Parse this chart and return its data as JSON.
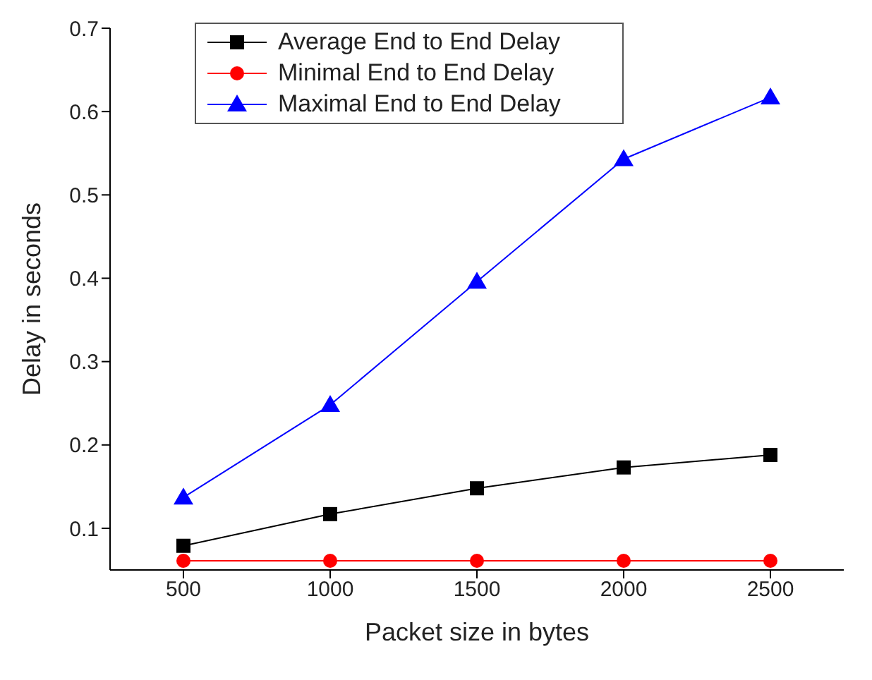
{
  "chart_data": {
    "type": "line",
    "xlabel": "Packet size in bytes",
    "ylabel": "Delay in seconds",
    "x": [
      500,
      1000,
      1500,
      2000,
      2500
    ],
    "series": [
      {
        "name": "Average End to End Delay",
        "color": "#000000",
        "marker": "square",
        "values": [
          0.079,
          0.117,
          0.148,
          0.173,
          0.188
        ]
      },
      {
        "name": "Minimal End to End Delay",
        "color": "#ff0000",
        "marker": "circle",
        "values": [
          0.061,
          0.061,
          0.061,
          0.061,
          0.061
        ]
      },
      {
        "name": "Maximal End to End Delay",
        "color": "#0000ff",
        "marker": "triangle",
        "values": [
          0.137,
          0.248,
          0.396,
          0.543,
          0.617
        ]
      }
    ],
    "xlim": [
      250,
      2750
    ],
    "xticks": [
      500,
      1000,
      1500,
      2000,
      2500
    ],
    "ylim": [
      0.05,
      0.7
    ],
    "yticks": [
      0.1,
      0.2,
      0.3,
      0.4,
      0.5,
      0.6,
      0.7
    ],
    "grid": false,
    "legend": "top left"
  }
}
